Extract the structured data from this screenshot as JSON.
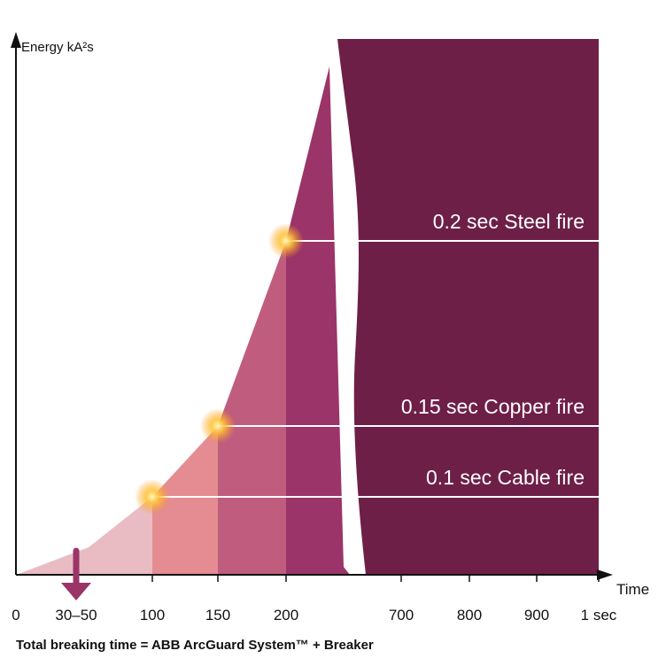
{
  "chart_data": {
    "type": "area",
    "ylabel": "Energy kA²s",
    "xlabel": "Time",
    "x_ticks": [
      "0",
      "30–50",
      "100",
      "150",
      "200",
      "700",
      "800",
      "900",
      "1 sec"
    ],
    "x_tick_values_ms": [
      0,
      40,
      100,
      150,
      200,
      700,
      800,
      900,
      1000
    ],
    "broken_axis_between_ms": [
      200,
      700
    ],
    "highlight_range": {
      "label": "30–50",
      "from_ms": 30,
      "to_ms": 50,
      "marker": "down-arrow"
    },
    "shaded_segments_ms": [
      {
        "from": 0,
        "to": 100,
        "color": "#e9bcc4"
      },
      {
        "from": 100,
        "to": 150,
        "color": "#e48c92"
      },
      {
        "from": 150,
        "to": 200,
        "color": "#c05d7f"
      },
      {
        "from": 200,
        "to": 240,
        "color": "#9b3468"
      }
    ],
    "levels": [
      {
        "label": "0.1 sec Cable fire",
        "time_ms": 100
      },
      {
        "label": "0.15 sec Copper fire",
        "time_ms": 150
      },
      {
        "label": "0.2 sec Steel fire",
        "time_ms": 200
      }
    ],
    "curve": {
      "shape": "exponential",
      "rising_with_time": true
    },
    "grid": false,
    "colors": {
      "panel": "#6e1f47",
      "arrow": "#9b3468",
      "axis": "#111111",
      "glow": "#ffbf2e"
    }
  },
  "footnote": "Total breaking time = ABB ArcGuard System™ + Breaker"
}
